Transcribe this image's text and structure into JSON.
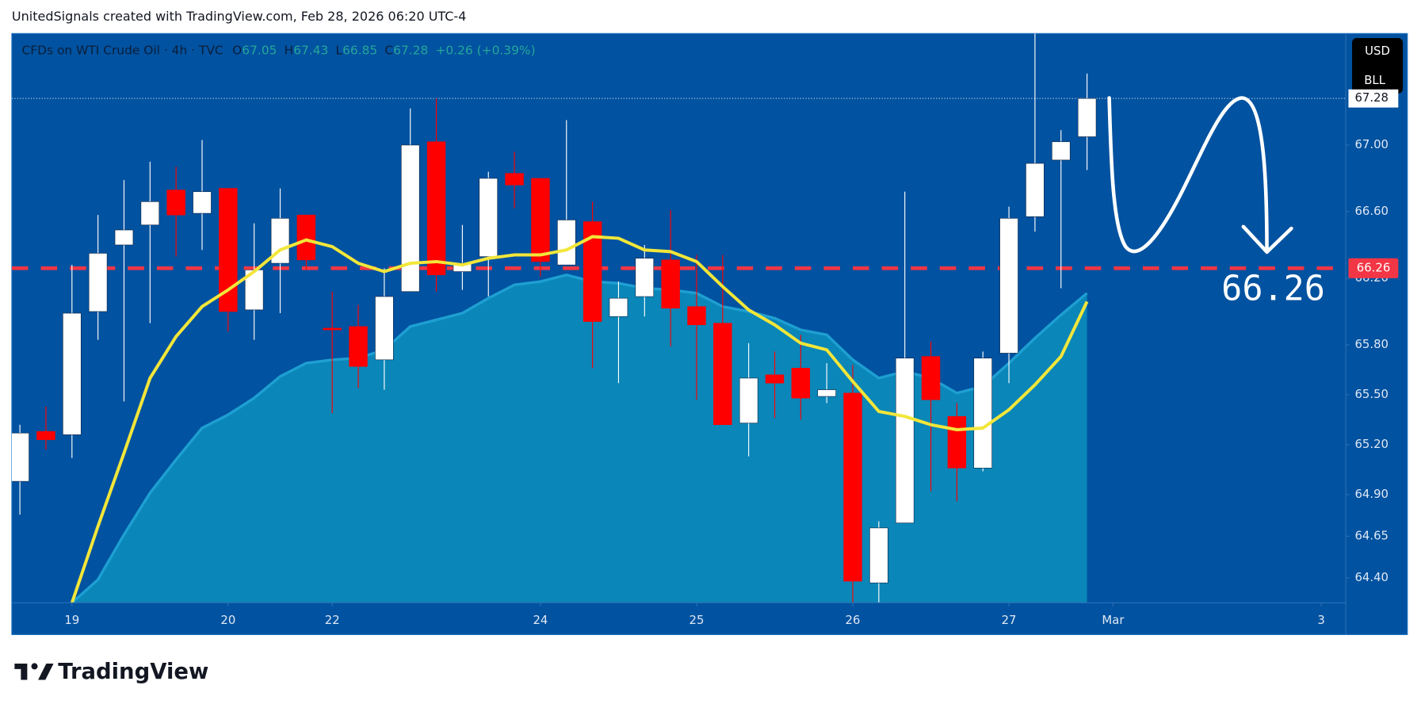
{
  "header": "UnitedSignals created with TradingView.com, Feb 28, 2026 06:20 UTC-4",
  "footer": {
    "brand": "TradingView"
  },
  "chart_data": {
    "type": "candlestick",
    "symbol": "CFDs on WTI Crude Oil · 4h · TVC",
    "ohlc_legend": [
      {
        "key": "O",
        "value": "67.05"
      },
      {
        "key": "H",
        "value": "67.43"
      },
      {
        "key": "L",
        "value": "66.85"
      },
      {
        "key": "C",
        "value": "67.28"
      }
    ],
    "change": "+0.26 (+0.39%)",
    "currency": [
      "USD",
      "BLL"
    ],
    "categories": [
      null,
      null,
      null,
      null,
      null,
      null,
      null,
      null,
      null,
      null,
      null,
      null,
      null,
      null,
      null,
      null,
      null,
      null,
      null,
      null,
      null,
      null,
      null,
      null,
      null,
      null,
      null,
      null,
      null,
      null,
      null,
      null,
      null,
      null,
      null,
      null,
      null,
      null,
      null,
      null,
      null,
      null
    ],
    "open": [
      64.98,
      65.28,
      65.26,
      66.0,
      66.4,
      66.52,
      66.73,
      66.59,
      66.74,
      66.01,
      66.29,
      66.58,
      65.9,
      65.91,
      65.71,
      66.12,
      67.02,
      66.24,
      66.33,
      66.83,
      66.8,
      66.28,
      66.54,
      65.97,
      66.09,
      66.31,
      66.03,
      65.93,
      65.33,
      65.62,
      65.66,
      65.49,
      65.51,
      64.37,
      64.73,
      65.73,
      65.37,
      65.06,
      65.75,
      66.57,
      66.91,
      67.05
    ],
    "high": [
      65.32,
      65.43,
      66.28,
      66.58,
      66.79,
      66.9,
      66.87,
      67.03,
      66.74,
      66.53,
      66.74,
      66.58,
      66.12,
      66.04,
      66.26,
      67.22,
      67.28,
      66.52,
      66.84,
      66.96,
      66.8,
      67.15,
      66.66,
      66.18,
      66.4,
      66.61,
      66.34,
      66.34,
      65.81,
      65.76,
      65.86,
      65.69,
      65.68,
      64.74,
      66.72,
      65.82,
      65.45,
      65.76,
      66.63,
      67.67,
      67.09,
      67.43
    ],
    "low": [
      64.78,
      65.17,
      65.12,
      65.83,
      65.46,
      65.93,
      66.33,
      66.37,
      65.88,
      65.83,
      65.99,
      66.25,
      65.39,
      65.54,
      65.53,
      66.12,
      66.12,
      66.13,
      66.09,
      66.62,
      66.21,
      66.28,
      65.66,
      65.57,
      65.97,
      65.79,
      65.47,
      65.32,
      65.13,
      65.36,
      65.35,
      65.45,
      64.25,
      64.25,
      64.73,
      64.92,
      64.86,
      65.04,
      65.57,
      66.48,
      66.14,
      66.85
    ],
    "close": [
      65.27,
      65.23,
      65.99,
      66.35,
      66.49,
      66.66,
      66.58,
      66.72,
      66.0,
      66.25,
      66.56,
      66.31,
      65.89,
      65.67,
      66.09,
      67.0,
      66.22,
      66.29,
      66.8,
      66.76,
      66.3,
      66.55,
      65.94,
      66.08,
      66.32,
      66.02,
      65.92,
      65.32,
      65.6,
      65.57,
      65.48,
      65.53,
      64.38,
      64.7,
      65.72,
      65.47,
      65.06,
      65.72,
      66.56,
      66.89,
      67.02,
      67.28
    ],
    "up_color": "#ffffff",
    "down_color": "#ff0000",
    "area": {
      "color": "#0a86b8",
      "line_color": "#1e9fd2",
      "values": [
        null,
        null,
        64.25,
        64.39,
        64.66,
        64.91,
        65.11,
        65.3,
        65.38,
        65.48,
        65.61,
        65.69,
        65.71,
        65.72,
        65.77,
        65.91,
        65.95,
        65.99,
        66.08,
        66.16,
        66.18,
        66.22,
        66.18,
        66.17,
        66.14,
        66.13,
        66.11,
        66.03,
        66.0,
        65.96,
        65.89,
        65.86,
        65.71,
        65.6,
        65.64,
        65.6,
        65.51,
        65.55,
        65.69,
        65.84,
        65.98,
        66.11
      ]
    },
    "line": {
      "color": "#f2e63a",
      "values": [
        null,
        null,
        64.25,
        64.71,
        65.15,
        65.6,
        65.85,
        66.03,
        66.13,
        66.24,
        66.37,
        66.43,
        66.39,
        66.29,
        66.24,
        66.29,
        66.3,
        66.28,
        66.32,
        66.34,
        66.34,
        66.37,
        66.45,
        66.44,
        66.37,
        66.36,
        66.3,
        66.15,
        66.01,
        65.92,
        65.81,
        65.77,
        65.58,
        65.4,
        65.37,
        65.32,
        65.29,
        65.3,
        65.41,
        65.56,
        65.73,
        66.06
      ]
    },
    "hline": {
      "value": 66.26,
      "label": "66.26",
      "color": "#f23645"
    },
    "price_line": {
      "value": 67.28,
      "label": "67.28"
    },
    "annotation": "66.26",
    "ylim": [
      64.25,
      67.67
    ],
    "yticks": [
      {
        "value": 67,
        "label": "67.00"
      },
      {
        "value": 66.6,
        "label": "66.60"
      },
      {
        "value": 66.2,
        "label": "66.20"
      },
      {
        "value": 65.8,
        "label": "65.80"
      },
      {
        "value": 65.5,
        "label": "65.50"
      },
      {
        "value": 65.2,
        "label": "65.20"
      },
      {
        "value": 64.9,
        "label": "64.90"
      },
      {
        "value": 64.65,
        "label": "64.65"
      },
      {
        "value": 64.4,
        "label": "64.40"
      }
    ],
    "xlim": [
      -0.31,
      50.94
    ],
    "xticks": [
      {
        "value": 2,
        "label": "19"
      },
      {
        "value": 8,
        "label": "20"
      },
      {
        "value": 12,
        "label": "22"
      },
      {
        "value": 20,
        "label": "24"
      },
      {
        "value": 26,
        "label": "25"
      },
      {
        "value": 32,
        "label": "26"
      },
      {
        "value": 38,
        "label": "27"
      },
      {
        "value": 42,
        "label": "Mar"
      },
      {
        "value": 50,
        "label": "3"
      }
    ]
  }
}
